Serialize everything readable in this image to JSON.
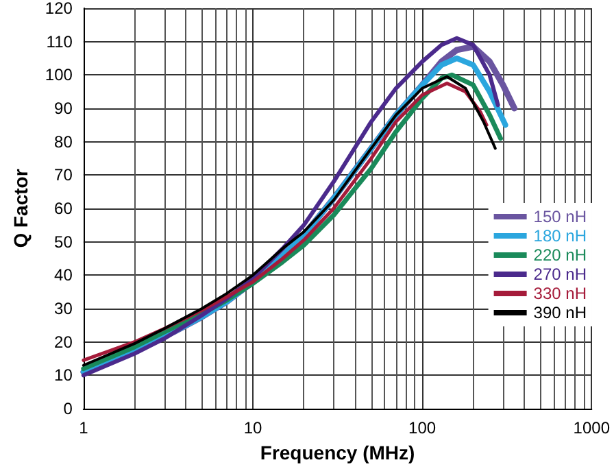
{
  "chart_data": {
    "type": "line",
    "xlabel": "Frequency (MHz)",
    "ylabel": "Q Factor",
    "log": "x",
    "xlim": [
      1,
      1000
    ],
    "xticks": [
      1,
      10,
      100,
      1000
    ],
    "ylim": [
      0,
      120
    ],
    "yticks": [
      0,
      10,
      20,
      30,
      40,
      50,
      60,
      70,
      80,
      90,
      100,
      110,
      120
    ],
    "grid": true,
    "legend": "right",
    "marker": "none",
    "line_style": "solid",
    "series": [
      {
        "name": "150 nH",
        "color": "#6a55a0",
        "x": [
          1,
          2,
          3,
          5,
          7,
          10,
          15,
          20,
          30,
          50,
          70,
          100,
          130,
          160,
          200,
          250,
          300,
          350
        ],
        "values": [
          11,
          17,
          21.5,
          27.5,
          32,
          38,
          46,
          52,
          63,
          78,
          88,
          97,
          104,
          107.5,
          108.5,
          104,
          97,
          90
        ]
      },
      {
        "name": "180 nH",
        "color": "#2ba6de",
        "x": [
          1,
          2,
          3,
          5,
          7,
          10,
          15,
          20,
          30,
          50,
          70,
          100,
          130,
          160,
          200,
          250,
          310
        ],
        "values": [
          11,
          17,
          21.5,
          27.5,
          32,
          38,
          46,
          52,
          63,
          78,
          88,
          97,
          103,
          105,
          103,
          95,
          85
        ]
      },
      {
        "name": "220 nH",
        "color": "#1a8a5a",
        "x": [
          1,
          2,
          3,
          5,
          7,
          10,
          15,
          20,
          30,
          50,
          70,
          100,
          130,
          150,
          200,
          250,
          290
        ],
        "values": [
          12,
          18.5,
          23,
          28.5,
          32.5,
          37.5,
          44,
          49,
          58,
          72,
          83,
          93,
          99,
          100,
          97,
          88,
          81
        ]
      },
      {
        "name": "270 nH",
        "color": "#4b2a8c",
        "x": [
          1,
          2,
          3,
          5,
          7,
          10,
          15,
          20,
          30,
          50,
          70,
          100,
          130,
          160,
          200,
          250,
          280
        ],
        "values": [
          10,
          16.5,
          21,
          28,
          33,
          39,
          48,
          55,
          68,
          86,
          96,
          104,
          109,
          111,
          109,
          100,
          91
        ]
      },
      {
        "name": "330 nH",
        "color": "#a51b3a",
        "x": [
          1,
          2,
          3,
          5,
          7,
          10,
          15,
          20,
          30,
          50,
          70,
          100,
          140,
          180,
          220,
          240
        ],
        "values": [
          14.5,
          20,
          24,
          29.5,
          33.5,
          38,
          45,
          50.5,
          60,
          75,
          86,
          94,
          97.5,
          95,
          89,
          85
        ]
      },
      {
        "name": "390 nH",
        "color": "#000000",
        "x": [
          1,
          2,
          3,
          5,
          7,
          10,
          15,
          20,
          30,
          50,
          70,
          100,
          140,
          180,
          230,
          270
        ],
        "values": [
          13,
          19.5,
          24,
          30,
          34.5,
          40,
          48,
          53,
          62.5,
          78,
          88,
          96,
          99.5,
          96,
          86,
          78
        ]
      }
    ]
  }
}
